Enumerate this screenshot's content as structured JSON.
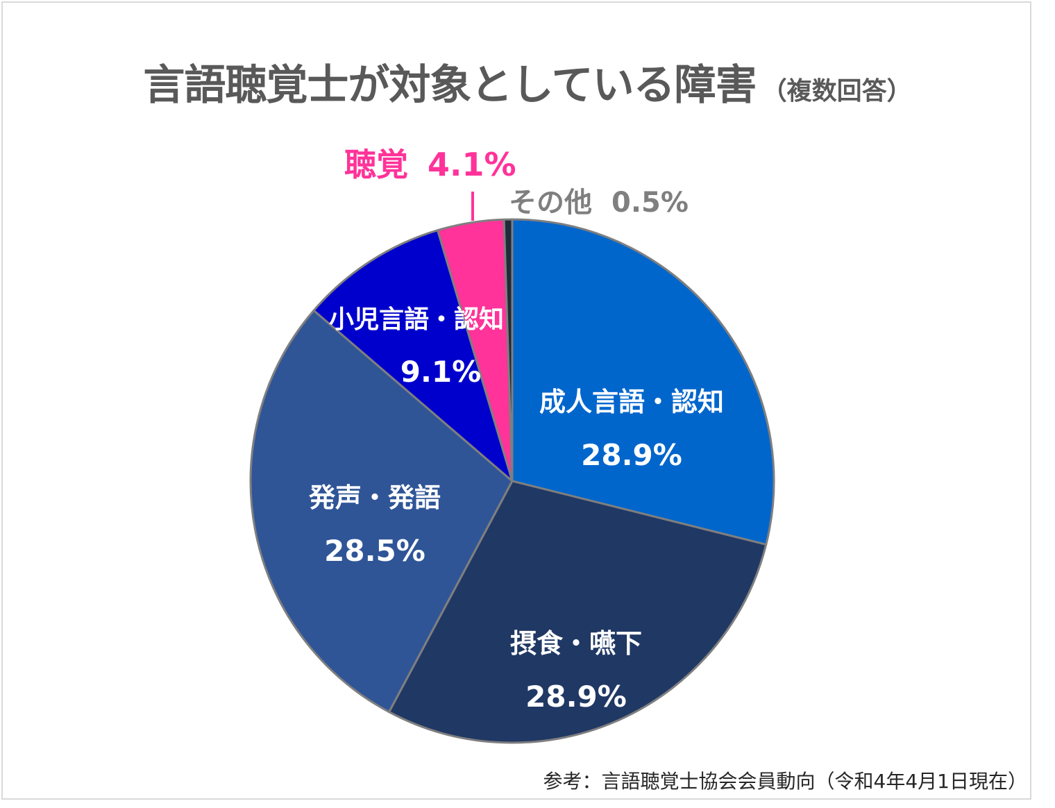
{
  "title": "言語聴覚士が対象としている障害",
  "subtitle": "（複数回答）",
  "source": "参考：言語聴覚士協会会員動向（令和4年4月1日現在）",
  "chart_data": {
    "type": "pie",
    "start": "12 o'clock",
    "direction": "clockwise",
    "slices": [
      {
        "name": "成人言語・認知",
        "value": 28.9,
        "label": "28.9%",
        "color": "#0066CC"
      },
      {
        "name": "摂食・嚥下",
        "value": 28.9,
        "label": "28.9%",
        "color": "#203864"
      },
      {
        "name": "発声・発語",
        "value": 28.5,
        "label": "28.5%",
        "color": "#2F5597"
      },
      {
        "name": "小児言語・認知",
        "value": 9.1,
        "label": "9.1%",
        "color": "#0000CC"
      },
      {
        "name": "聴覚",
        "value": 4.1,
        "label": "4.1%",
        "color": "#FF3399"
      },
      {
        "name": "その他",
        "value": 0.5,
        "label": "0.5%",
        "color": "#1F2A3A"
      }
    ]
  }
}
